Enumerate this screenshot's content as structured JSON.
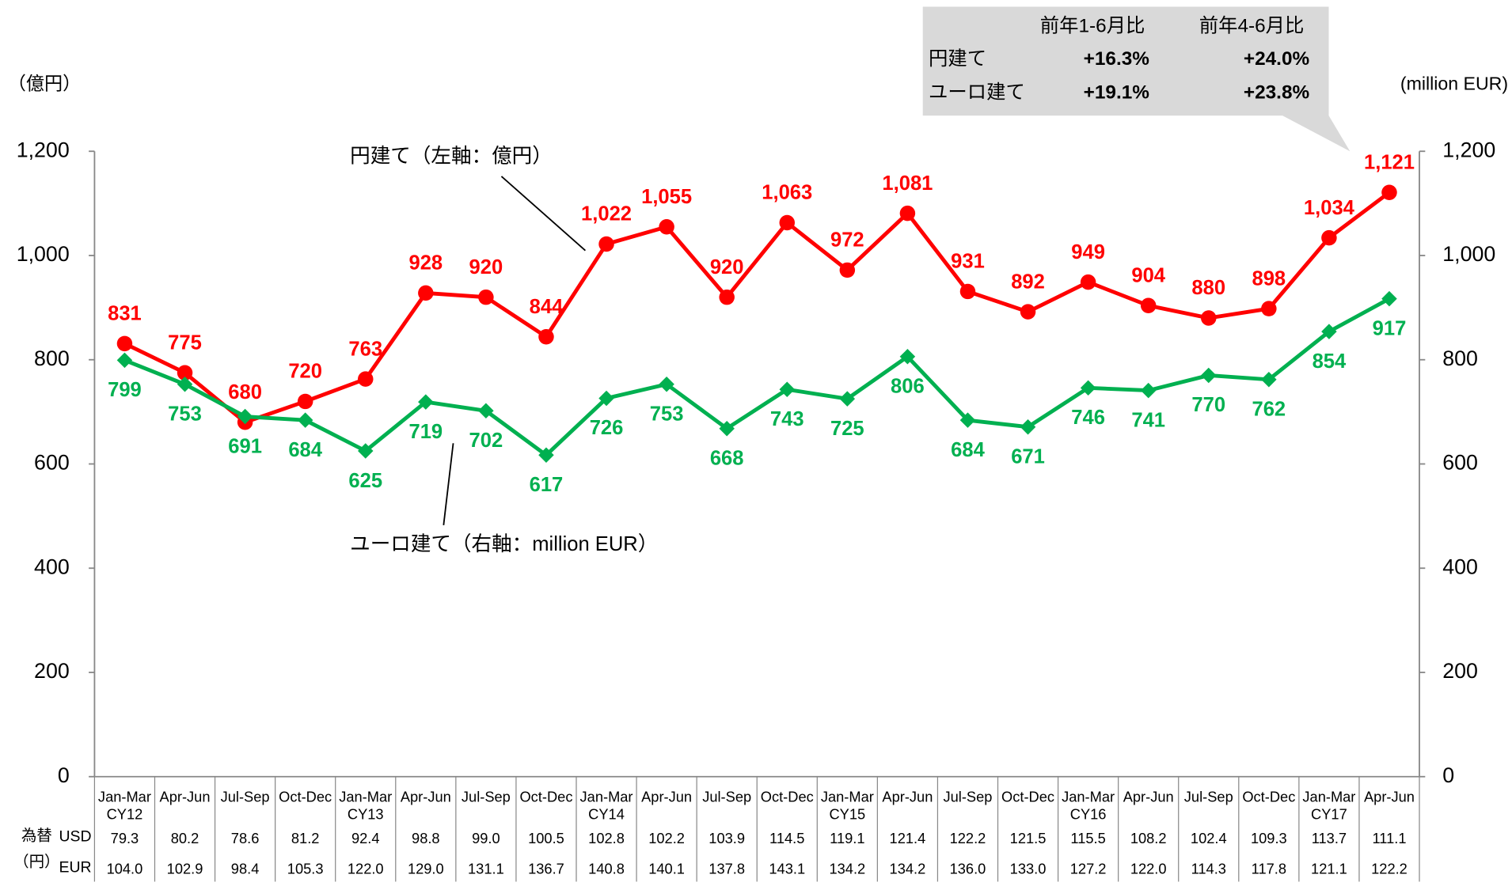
{
  "chart_data": {
    "type": "line",
    "y_label": "（億円）",
    "y2_label": "(million EUR)",
    "categories": [
      "Jan-Mar",
      "Apr-Jun",
      "Jul-Sep",
      "Oct-Dec",
      "Jan-Mar",
      "Apr-Jun",
      "Jul-Sep",
      "Oct-Dec",
      "Jan-Mar",
      "Apr-Jun",
      "Jul-Sep",
      "Oct-Dec",
      "Jan-Mar",
      "Apr-Jun",
      "Jul-Sep",
      "Oct-Dec",
      "Jan-Mar",
      "Apr-Jun",
      "Jul-Sep",
      "Oct-Dec",
      "Jan-Mar",
      "Apr-Jun"
    ],
    "year_labels": [
      "CY12",
      null,
      null,
      null,
      "CY13",
      null,
      null,
      null,
      "CY14",
      null,
      null,
      null,
      "CY15",
      null,
      null,
      null,
      "CY16",
      null,
      null,
      null,
      "CY17",
      null
    ],
    "ylim": [
      0,
      1200
    ],
    "yticks": [
      0,
      200,
      400,
      600,
      800,
      {
        "value": 1000,
        "label": "1,000"
      },
      {
        "value": 1200,
        "label": "1,200"
      }
    ],
    "y2lim": [
      0,
      1200
    ],
    "y2ticks": [
      0,
      200,
      400,
      600,
      800,
      {
        "value": 1000,
        "label": "1,000"
      },
      {
        "value": 1200,
        "label": "1,200"
      }
    ],
    "grid": false,
    "series": [
      {
        "name": "円建て（左軸：億円）",
        "color": "#ff0000",
        "marker": "circle",
        "values": [
          831,
          775,
          680,
          720,
          763,
          928,
          920,
          844,
          1022,
          1055,
          920,
          1063,
          972,
          1081,
          931,
          892,
          949,
          904,
          880,
          898,
          1034,
          1121
        ],
        "value_labels": [
          "831",
          "775",
          "680",
          "720",
          "763",
          "928",
          "920",
          "844",
          "1,022",
          "1,055",
          "920",
          "1,063",
          "972",
          "1,081",
          "931",
          "892",
          "949",
          "904",
          "880",
          "898",
          "1,034",
          "1,121"
        ]
      },
      {
        "name": "ユーロ建て（右軸：million EUR）",
        "color": "#00b050",
        "marker": "diamond",
        "axis": "y2",
        "values": [
          799,
          753,
          691,
          684,
          625,
          719,
          702,
          617,
          726,
          753,
          668,
          743,
          725,
          806,
          684,
          671,
          746,
          741,
          770,
          762,
          854,
          917
        ]
      }
    ],
    "exchange_rate": {
      "label": "為替",
      "unit": "（円）",
      "rows": [
        {
          "name": "USD",
          "values": [
            "79.3",
            "80.2",
            "78.6",
            "81.2",
            "92.4",
            "98.8",
            "99.0",
            "100.5",
            "102.8",
            "102.2",
            "103.9",
            "114.5",
            "119.1",
            "121.4",
            "122.2",
            "121.5",
            "115.5",
            "108.2",
            "102.4",
            "109.3",
            "113.7",
            "111.1"
          ]
        },
        {
          "name": "EUR",
          "values": [
            "104.0",
            "102.9",
            "98.4",
            "105.3",
            "122.0",
            "129.0",
            "131.1",
            "136.7",
            "140.8",
            "140.1",
            "137.8",
            "143.1",
            "134.2",
            "134.2",
            "136.0",
            "133.0",
            "127.2",
            "122.0",
            "114.3",
            "117.8",
            "121.1",
            "122.2"
          ]
        }
      ]
    },
    "callout": {
      "columns": [
        "前年1-6月比",
        "前年4-6月比"
      ],
      "rows": [
        {
          "name": "円建て",
          "values": [
            "+16.3%",
            "+24.0%"
          ]
        },
        {
          "name": "ユーロ建て",
          "values": [
            "+19.1%",
            "+23.8%"
          ]
        }
      ]
    }
  }
}
